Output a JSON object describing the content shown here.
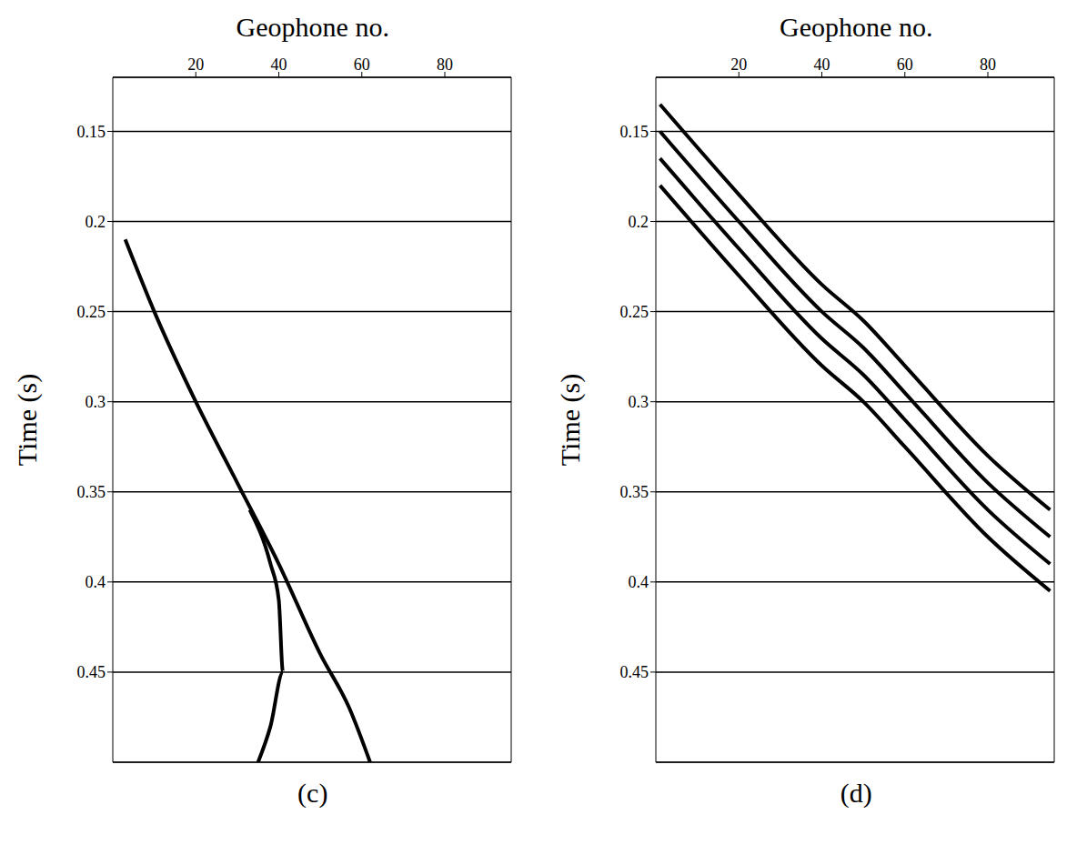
{
  "chart_data": [
    {
      "type": "line",
      "title": "(c)",
      "x_label": "Geophone no.",
      "y_label": "Time (s)",
      "xlim": [
        0,
        96
      ],
      "xticks": [
        20,
        40,
        60,
        80
      ],
      "ylim": [
        0.12,
        0.5
      ],
      "yticks": [
        0.15,
        0.2,
        0.25,
        0.3,
        0.35,
        0.4,
        0.45
      ],
      "grid": true,
      "series": [
        {
          "color": "#000000",
          "x": [
            3,
            10,
            20,
            30,
            40,
            50,
            57,
            62
          ],
          "values": [
            0.21,
            0.25,
            0.3,
            0.345,
            0.39,
            0.44,
            0.47,
            0.5
          ]
        },
        {
          "color": "#000000",
          "x": [
            33,
            38,
            40,
            41,
            38,
            35
          ],
          "values": [
            0.36,
            0.39,
            0.41,
            0.45,
            0.48,
            0.5
          ]
        }
      ]
    },
    {
      "type": "line",
      "title": "(d)",
      "x_label": "Geophone no.",
      "y_label": "Time (s)",
      "xlim": [
        0,
        96
      ],
      "xticks": [
        20,
        40,
        60,
        80
      ],
      "ylim": [
        0.12,
        0.5
      ],
      "yticks": [
        0.15,
        0.2,
        0.25,
        0.3,
        0.35,
        0.4,
        0.45
      ],
      "grid": true,
      "series": [
        {
          "color": "#000000",
          "x": [
            1,
            20,
            40,
            50,
            60,
            80,
            95
          ],
          "values": [
            0.135,
            0.185,
            0.235,
            0.255,
            0.28,
            0.33,
            0.36
          ]
        },
        {
          "color": "#000000",
          "x": [
            1,
            20,
            40,
            50,
            60,
            80,
            95
          ],
          "values": [
            0.15,
            0.2,
            0.25,
            0.27,
            0.295,
            0.345,
            0.375
          ]
        },
        {
          "color": "#000000",
          "x": [
            1,
            20,
            40,
            50,
            60,
            80,
            95
          ],
          "values": [
            0.165,
            0.215,
            0.265,
            0.285,
            0.31,
            0.36,
            0.39
          ]
        },
        {
          "color": "#000000",
          "x": [
            1,
            20,
            40,
            50,
            60,
            80,
            95
          ],
          "values": [
            0.18,
            0.23,
            0.28,
            0.3,
            0.325,
            0.375,
            0.405
          ]
        }
      ]
    }
  ]
}
